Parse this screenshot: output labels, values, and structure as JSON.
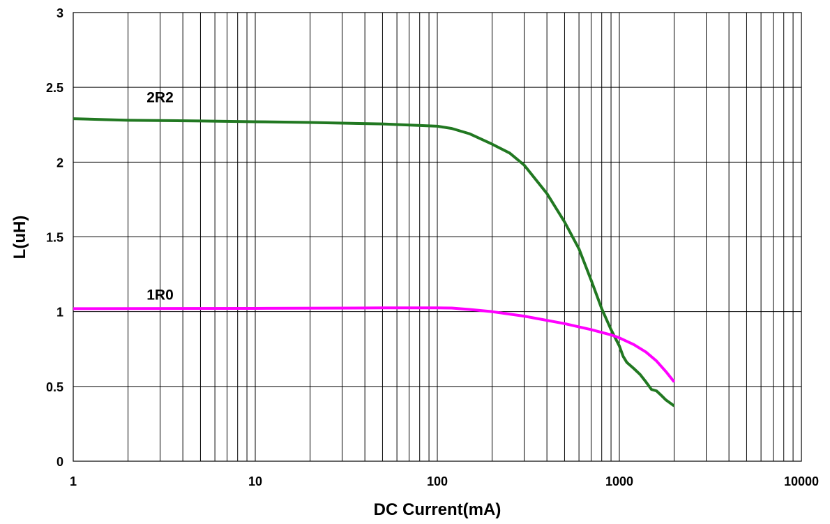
{
  "chart_data": {
    "type": "line",
    "title": "",
    "xlabel": "DC Current(mA)",
    "ylabel": "L(uH)",
    "x_scale": "log",
    "xlim": [
      1,
      10000
    ],
    "ylim": [
      0,
      3
    ],
    "x_ticks": [
      "1",
      "10",
      "100",
      "1000",
      "10000"
    ],
    "y_ticks": [
      "0",
      "0.5",
      "1",
      "1.5",
      "2",
      "2.5",
      "3"
    ],
    "grid": true,
    "legend": "none",
    "series": [
      {
        "name": "2R2",
        "color": "#217821",
        "x": [
          1,
          2,
          5,
          10,
          20,
          50,
          100,
          120,
          150,
          200,
          250,
          300,
          400,
          500,
          600,
          700,
          800,
          900,
          1000,
          1050,
          1100,
          1200,
          1300,
          1400,
          1500,
          1600,
          1700,
          1800,
          2000
        ],
        "y": [
          2.29,
          2.28,
          2.275,
          2.27,
          2.265,
          2.255,
          2.24,
          2.225,
          2.19,
          2.12,
          2.06,
          1.98,
          1.79,
          1.6,
          1.42,
          1.21,
          1.02,
          0.88,
          0.77,
          0.7,
          0.66,
          0.62,
          0.58,
          0.53,
          0.48,
          0.47,
          0.44,
          0.41,
          0.37
        ]
      },
      {
        "name": "1R0",
        "color": "#ff00ff",
        "x": [
          1,
          10,
          50,
          100,
          120,
          150,
          200,
          300,
          500,
          700,
          900,
          1000,
          1200,
          1400,
          1600,
          1800,
          2000
        ],
        "y": [
          1.02,
          1.022,
          1.025,
          1.025,
          1.024,
          1.015,
          1.0,
          0.97,
          0.92,
          0.88,
          0.845,
          0.825,
          0.78,
          0.73,
          0.67,
          0.6,
          0.53
        ]
      }
    ],
    "annotations": [
      {
        "text": "2R2",
        "x": 3,
        "y": 2.4
      },
      {
        "text": "1R0",
        "x": 3,
        "y": 1.08
      }
    ]
  }
}
